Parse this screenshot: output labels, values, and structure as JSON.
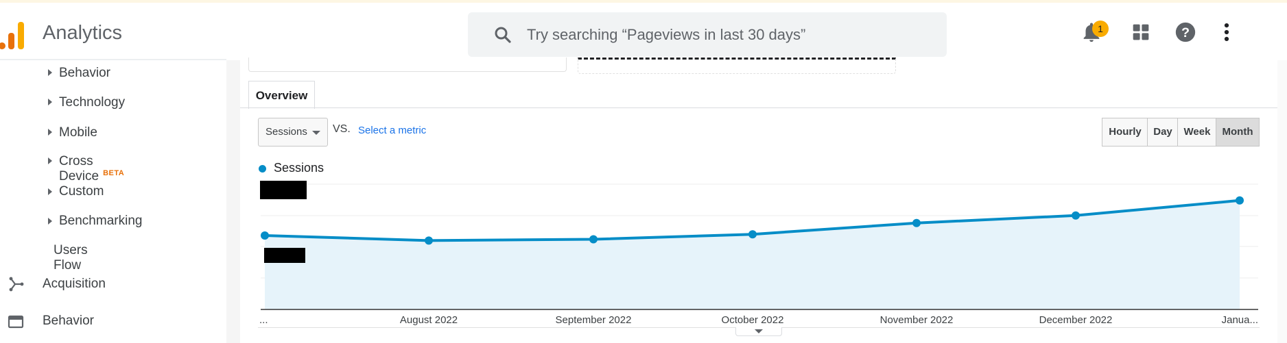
{
  "app": {
    "title": "Analytics"
  },
  "search": {
    "placeholder": "Try searching “Pageviews in last 30 days”"
  },
  "header": {
    "notification_count": "1"
  },
  "sidebar": {
    "sub_items": [
      {
        "label": "Behavior"
      },
      {
        "label": "Technology"
      },
      {
        "label": "Mobile"
      },
      {
        "label": "Cross Device",
        "badge": "BETA"
      },
      {
        "label": "Custom"
      },
      {
        "label": "Benchmarking"
      }
    ],
    "users_flow": "Users Flow",
    "sections": [
      {
        "label": "Acquisition",
        "icon": "acquisition-icon"
      },
      {
        "label": "Behavior",
        "icon": "behavior-icon"
      }
    ]
  },
  "main": {
    "tab": "Overview",
    "metric_select": "Sessions",
    "vs_label": "VS.",
    "select_metric_link": "Select a metric",
    "granularity": [
      "Hourly",
      "Day",
      "Week",
      "Month"
    ],
    "granularity_selected": "Month",
    "legend": "Sessions"
  },
  "colors": {
    "series": "#058dc7",
    "area": "#e6f3fa",
    "accent": "#f9ab00",
    "logo_orange": "#e8710a"
  },
  "chart_data": {
    "type": "area",
    "x": [
      "...",
      "August 2022",
      "September 2022",
      "October 2022",
      "November 2022",
      "December 2022",
      "Janua..."
    ],
    "series": [
      {
        "name": "Sessions",
        "values": [
          0.59,
          0.55,
          0.56,
          0.6,
          0.69,
          0.75,
          0.87
        ]
      }
    ],
    "ylim": [
      0,
      1
    ],
    "grid": true,
    "legend": "top-left"
  }
}
